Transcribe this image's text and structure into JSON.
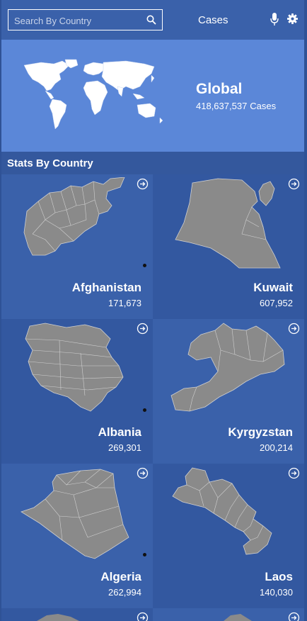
{
  "header": {
    "search_placeholder": "Search By Country",
    "title": "Cases",
    "icons": [
      "search-icon",
      "microphone-icon",
      "gear-icon"
    ]
  },
  "global": {
    "title": "Global",
    "cases_value": "418,637,537",
    "cases_label": "Cases"
  },
  "section": {
    "title": "Stats By Country"
  },
  "countries": [
    {
      "name": "Afghanistan",
      "cases": "171,673"
    },
    {
      "name": "Kuwait",
      "cases": "607,952"
    },
    {
      "name": "Albania",
      "cases": "269,301"
    },
    {
      "name": "Kyrgyzstan",
      "cases": "200,214"
    },
    {
      "name": "Algeria",
      "cases": "262,994"
    },
    {
      "name": "Laos",
      "cases": "140,030"
    }
  ],
  "colors": {
    "header": "#3a61aa",
    "banner": "#5b87d8",
    "section": "#34589d",
    "card": "#3a61aa",
    "map_fill": "#8a8a8a"
  }
}
